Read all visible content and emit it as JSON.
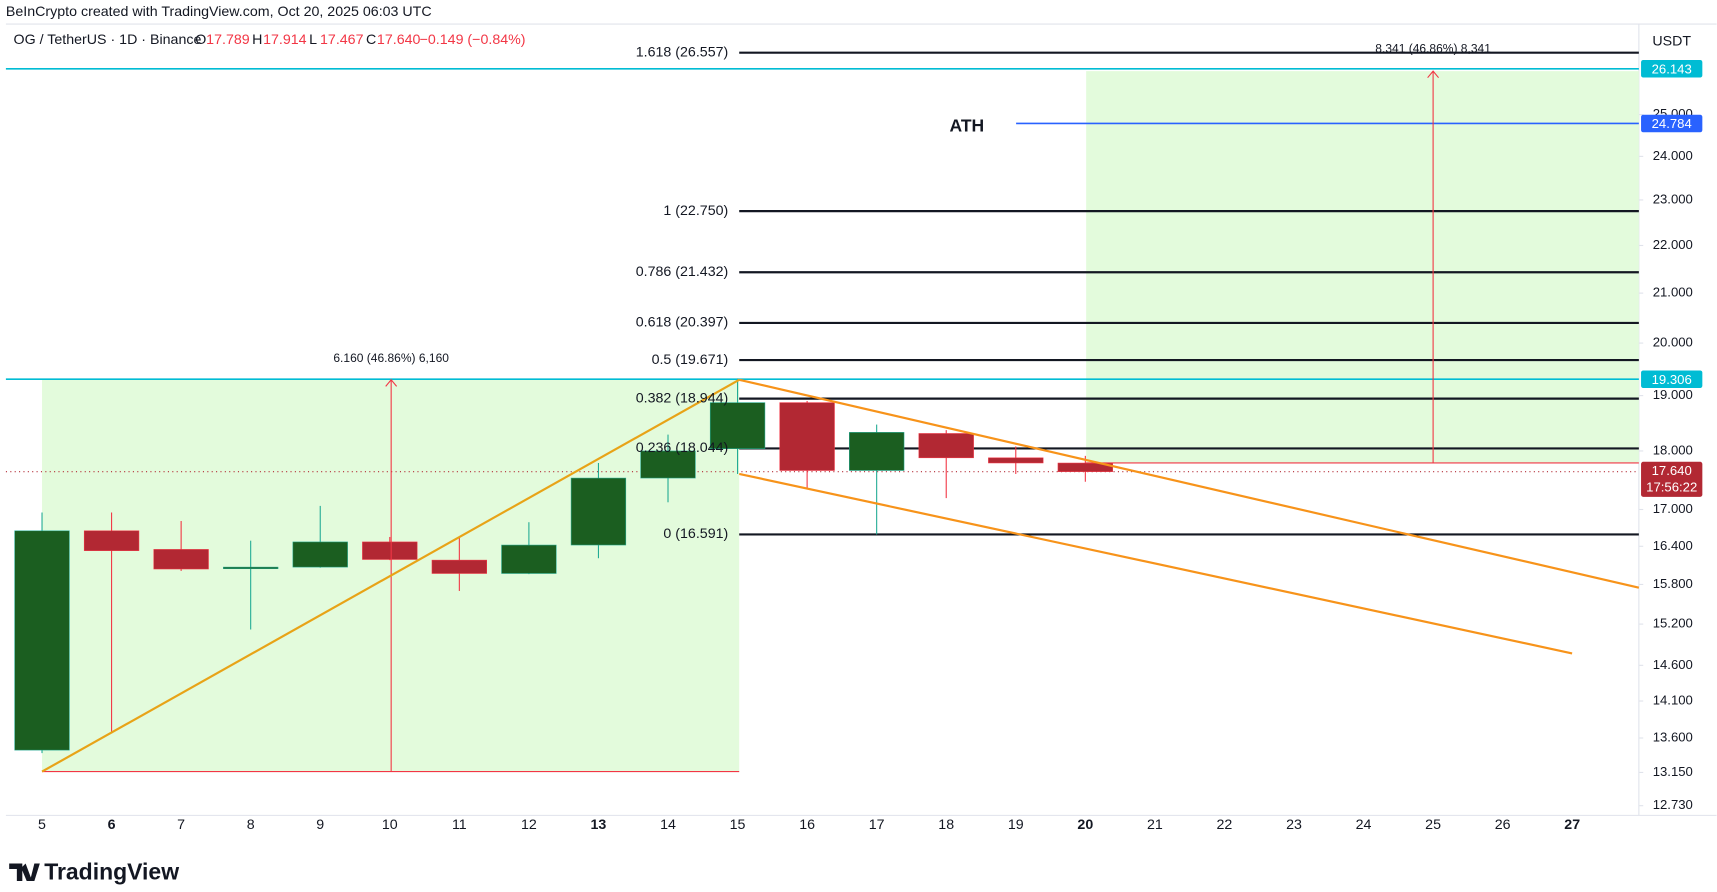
{
  "header": {
    "credit": "BeInCrypto created with TradingView.com, Oct 20, 2025 06:03 UTC",
    "symbol": "OG / TetherUS · 1D · Binance",
    "ohlc": [
      {
        "key": "O",
        "value": "17.789"
      },
      {
        "key": "H",
        "value": "17.914"
      },
      {
        "key": "L",
        "value": "17.467"
      },
      {
        "key": "C",
        "value": "17.640"
      }
    ],
    "change": "−0.149 (−0.84%)",
    "currency": "USDT",
    "logo": "TradingView"
  },
  "chart_data": {
    "type": "candlestick",
    "log_scale": true,
    "up_color": "#1b5e20",
    "up_wick": "#22ab94",
    "down_color": "#b22833",
    "down_wick": "#f23645",
    "categories": [
      "5",
      "6",
      "7",
      "8",
      "9",
      "10",
      "11",
      "12",
      "13",
      "14",
      "15",
      "16",
      "17",
      "18",
      "19",
      "20",
      "21",
      "22",
      "23",
      "24",
      "25",
      "26",
      "27"
    ],
    "open": [
      13.44,
      16.65,
      16.35,
      16.05,
      16.07,
      16.47,
      16.18,
      15.97,
      16.42,
      17.53,
      18.04,
      18.87,
      17.66,
      18.31,
      17.88,
      17.789,
      null,
      null,
      null,
      null,
      null,
      null,
      null
    ],
    "high": [
      16.95,
      16.95,
      16.81,
      16.49,
      17.06,
      16.55,
      16.55,
      16.79,
      17.79,
      18.29,
      19.32,
      18.9,
      18.47,
      18.37,
      18.08,
      17.914,
      null,
      null,
      null,
      null,
      null,
      null,
      null
    ],
    "low": [
      13.4,
      13.66,
      16.01,
      15.12,
      16.06,
      16.18,
      15.7,
      15.96,
      16.21,
      17.12,
      17.6,
      17.34,
      16.59,
      17.19,
      17.6,
      17.467,
      null,
      null,
      null,
      null,
      null,
      null,
      null
    ],
    "close": [
      16.65,
      16.33,
      16.04,
      16.07,
      16.47,
      16.19,
      15.97,
      16.42,
      17.53,
      18.0,
      18.87,
      17.66,
      18.33,
      17.88,
      17.79,
      17.64,
      null,
      null,
      null,
      null,
      null,
      null,
      null
    ],
    "ylim": [
      12.61,
      27.31
    ],
    "yticks": [
      {
        "value": 12.73,
        "label": "12.730"
      },
      {
        "value": 13.15,
        "label": "13.150"
      },
      {
        "value": 13.6,
        "label": "13.600"
      },
      {
        "value": 14.1,
        "label": "14.100"
      },
      {
        "value": 14.6,
        "label": "14.600"
      },
      {
        "value": 15.2,
        "label": "15.200"
      },
      {
        "value": 15.8,
        "label": "15.800"
      },
      {
        "value": 16.4,
        "label": "16.400"
      },
      {
        "value": 17,
        "label": "17.000"
      },
      {
        "value": 18,
        "label": "18.000"
      },
      {
        "value": 19,
        "label": "19.000"
      },
      {
        "value": 20,
        "label": "20.000"
      },
      {
        "value": 21,
        "label": "21.000"
      },
      {
        "value": 22,
        "label": "22.000"
      },
      {
        "value": 23,
        "label": "23.000"
      },
      {
        "value": 24,
        "label": "24.000"
      },
      {
        "value": 25,
        "label": "25.000"
      }
    ],
    "fib_levels": [
      {
        "value": 26.557,
        "label": "1.618 (26.557)"
      },
      {
        "value": 22.75,
        "label": "1 (22.750)"
      },
      {
        "value": 21.432,
        "label": "0.786 (21.432)"
      },
      {
        "value": 20.397,
        "label": "0.618 (20.397)"
      },
      {
        "value": 19.671,
        "label": "0.5 (19.671)"
      },
      {
        "value": 18.944,
        "label": "0.382 (18.944)"
      },
      {
        "value": 18.044,
        "label": "0.236 (18.044)"
      },
      {
        "value": 16.591,
        "label": "0 (16.591)"
      }
    ],
    "price_lines": [
      {
        "value": 26.143,
        "label": "26.143",
        "color": "#00bcd4"
      },
      {
        "value": 24.784,
        "label": "24.784",
        "color": "#2962ff"
      },
      {
        "value": 19.306,
        "label": "19.306",
        "color": "#00bcd4"
      },
      {
        "value": 17.64,
        "label": "17.640",
        "color": "#b22833",
        "line_style": "dotted",
        "countdown": "17:56:22"
      }
    ],
    "annotations": {
      "ath": "ATH",
      "measure_1": "6.160 (46.86%) 6,160",
      "measure_2": "8.341 (46.86%) 8,341"
    }
  }
}
